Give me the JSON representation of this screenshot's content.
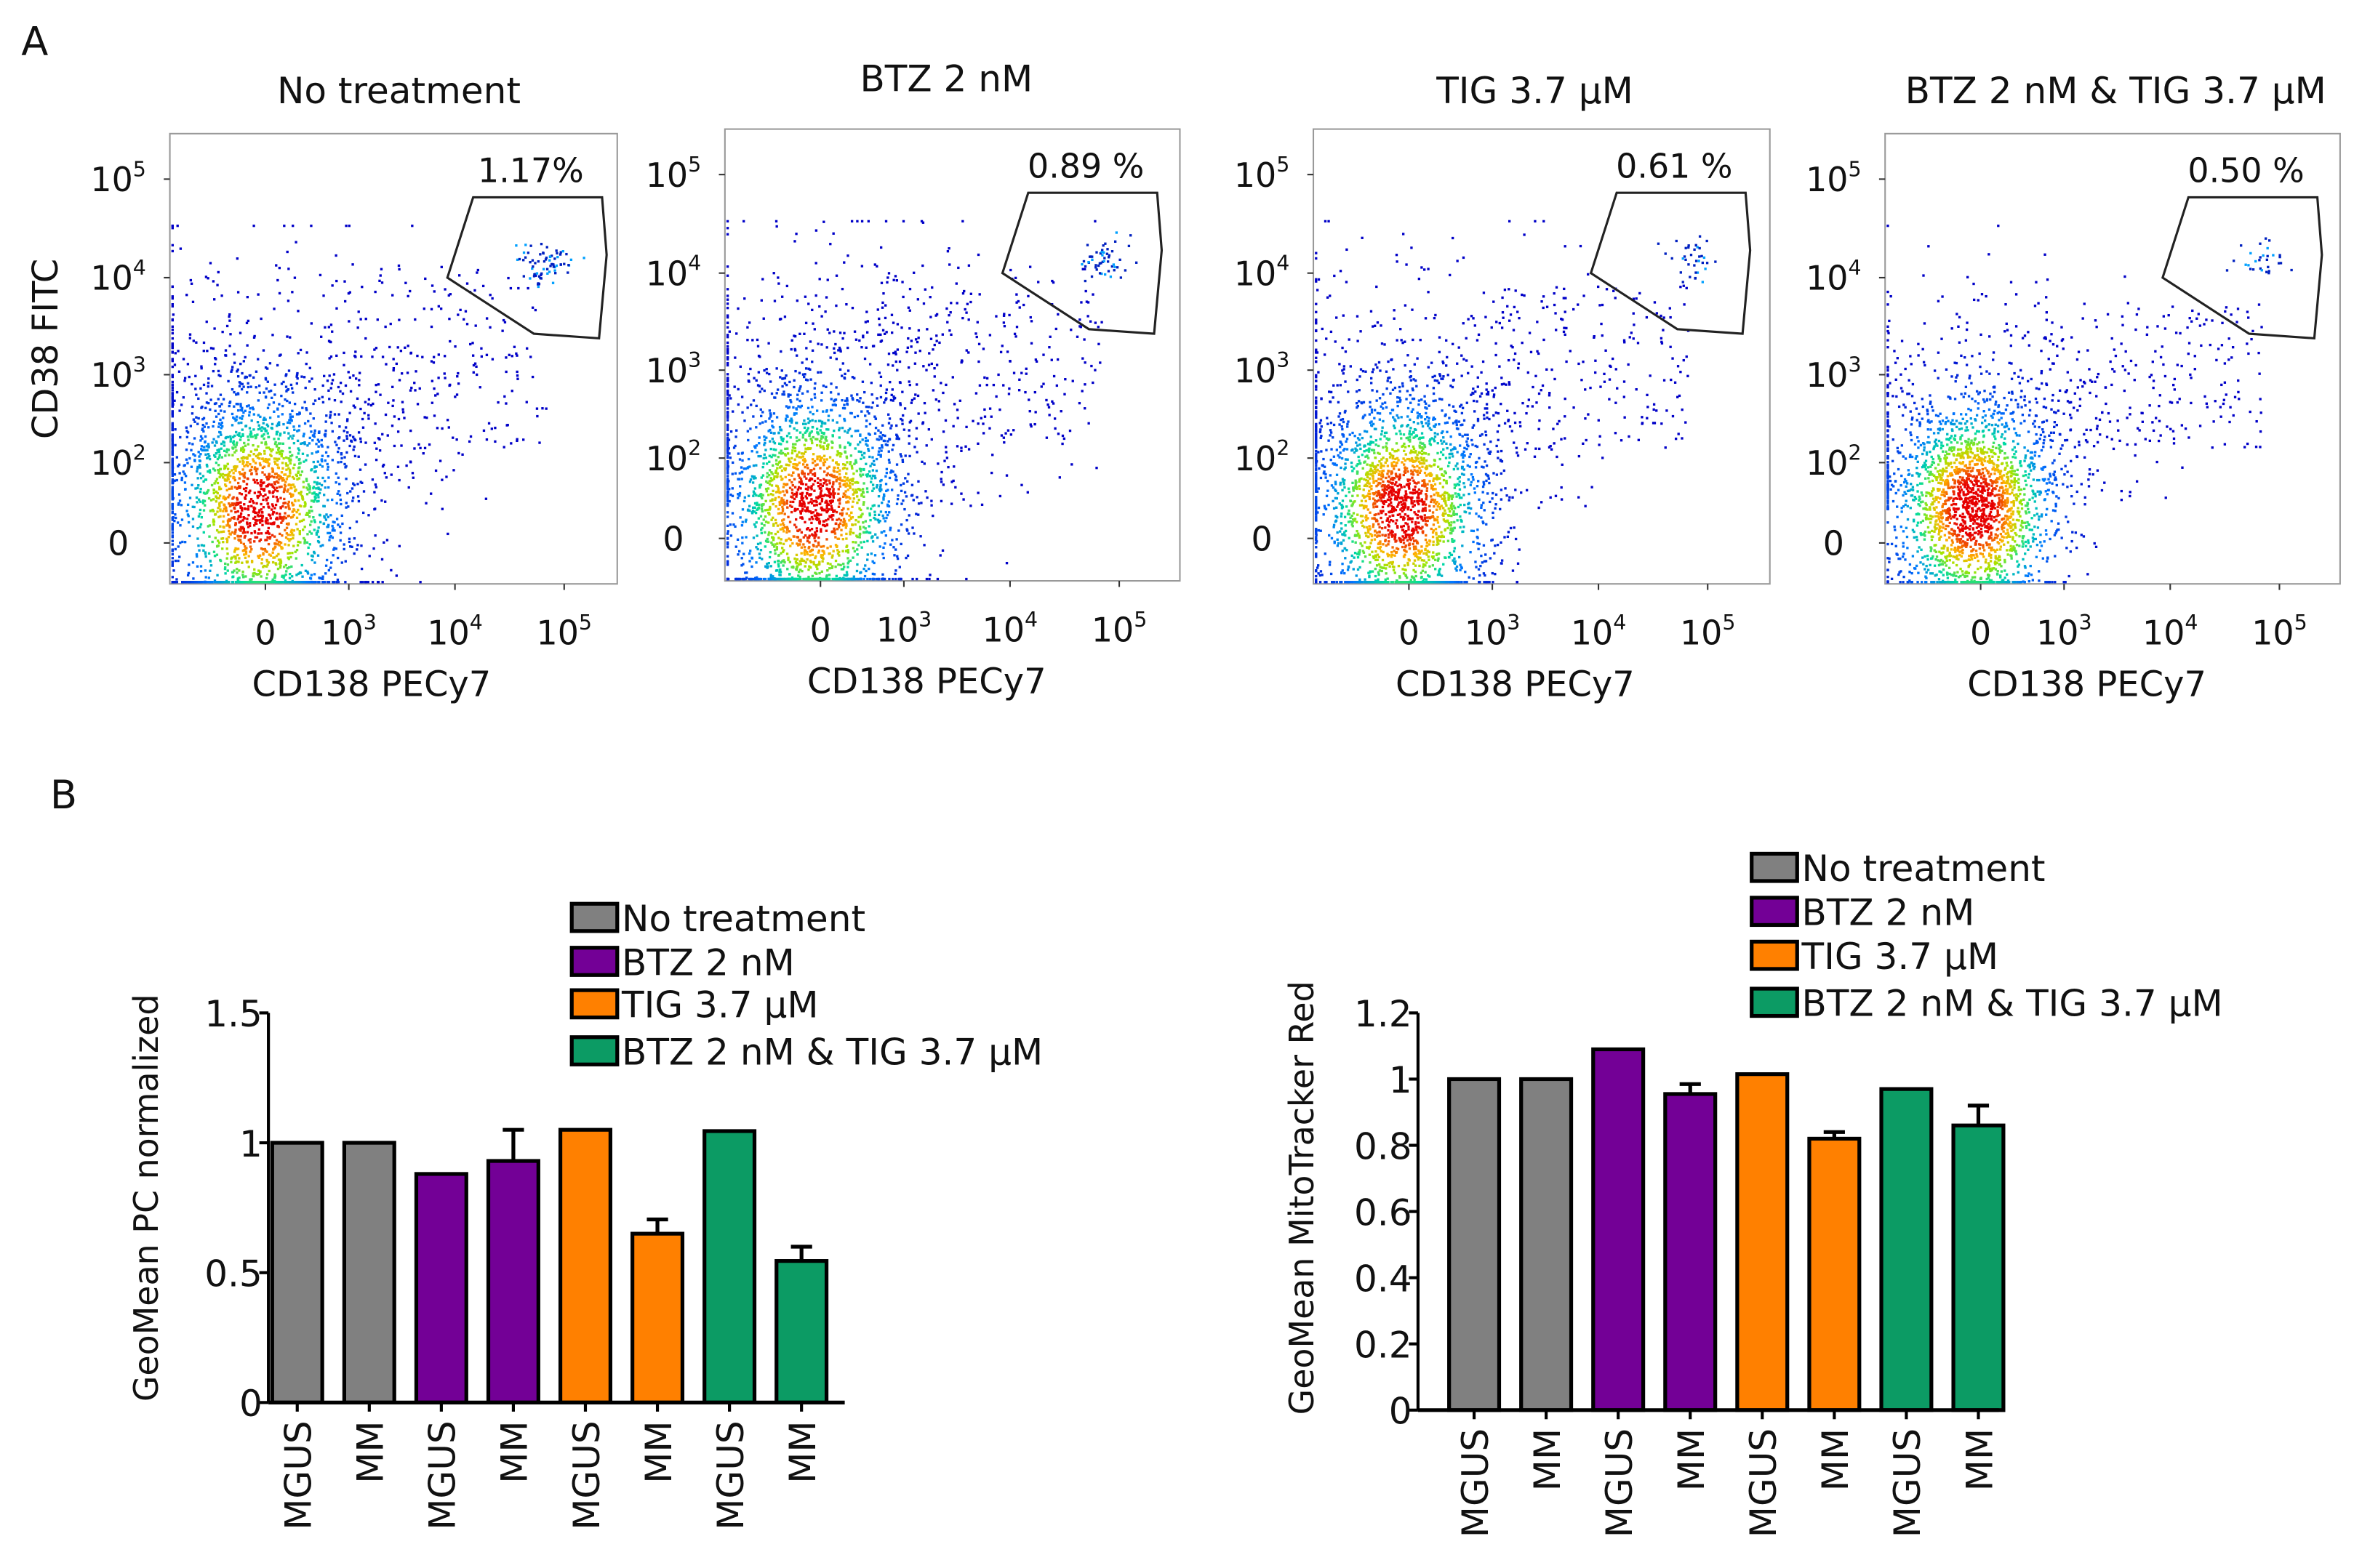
{
  "panel_labels": {
    "a": "A",
    "b": "B"
  },
  "flow_plots": {
    "xlabel": "CD138 PECy7",
    "ylabel": "CD38 FITC",
    "y_ticks": [
      "10^5",
      "10^4",
      "10^3",
      "10^2",
      "0"
    ],
    "x_ticks": [
      "0",
      "10^3",
      "10^4",
      "10^5"
    ],
    "panels": [
      {
        "title": "No treatment",
        "gate_percent": "1.17%",
        "gate_fraction": 0.0117
      },
      {
        "title": "BTZ 2 nM",
        "gate_percent": "0.89 %",
        "gate_fraction": 0.0089
      },
      {
        "title": "TIG 3.7 µM",
        "gate_percent": "0.61 %",
        "gate_fraction": 0.0061
      },
      {
        "title": "BTZ 2 nM & TIG 3.7 µM",
        "gate_percent": "0.50 %",
        "gate_fraction": 0.005
      }
    ]
  },
  "chart_data": [
    {
      "type": "bar",
      "title": "",
      "xlabel": "",
      "ylabel": "GeoMean PC normalized",
      "ylim": [
        0,
        1.5
      ],
      "yticks": [
        0,
        0.5,
        1,
        1.5
      ],
      "ytick_labels": [
        "0",
        "0.5",
        "1",
        "1.5"
      ],
      "categories": [
        "MGUS",
        "MM",
        "MGUS",
        "MM",
        "MGUS",
        "MM",
        "MGUS",
        "MM"
      ],
      "groups": [
        0,
        0,
        1,
        1,
        2,
        2,
        3,
        3
      ],
      "values": [
        1.0,
        1.0,
        0.88,
        0.93,
        1.05,
        0.65,
        1.045,
        0.545
      ],
      "error_upper": [
        null,
        null,
        null,
        1.05,
        null,
        0.705,
        null,
        0.6
      ],
      "legend": [
        "No treatment",
        "BTZ 2 nM",
        "TIG 3.7 µM",
        "BTZ 2 nM & TIG 3.7 µM"
      ],
      "legend_position": "top-right",
      "colors": [
        "#808080",
        "#730096",
        "#ff8000",
        "#0c9b64"
      ]
    },
    {
      "type": "bar",
      "title": "",
      "xlabel": "",
      "ylabel": "GeoMean MitoTracker Red",
      "ylim": [
        0,
        1.2
      ],
      "yticks": [
        0,
        0.2,
        0.4,
        0.6,
        0.8,
        1,
        1.2
      ],
      "ytick_labels": [
        "0",
        "0.2",
        "0.4",
        "0.6",
        "0.8",
        "1",
        "1.2"
      ],
      "categories": [
        "MGUS",
        "MM",
        "MGUS",
        "MM",
        "MGUS",
        "MM",
        "MGUS",
        "MM"
      ],
      "groups": [
        0,
        0,
        1,
        1,
        2,
        2,
        3,
        3
      ],
      "values": [
        1.0,
        1.0,
        1.09,
        0.955,
        1.015,
        0.82,
        0.97,
        0.86
      ],
      "error_upper": [
        null,
        null,
        null,
        0.985,
        null,
        0.84,
        null,
        0.92
      ],
      "legend": [
        "No treatment",
        "BTZ 2 nM",
        "TIG 3.7 µM",
        "BTZ 2 nM & TIG 3.7 µM"
      ],
      "legend_position": "top-right",
      "colors": [
        "#808080",
        "#730096",
        "#ff8000",
        "#0c9b64"
      ]
    }
  ]
}
